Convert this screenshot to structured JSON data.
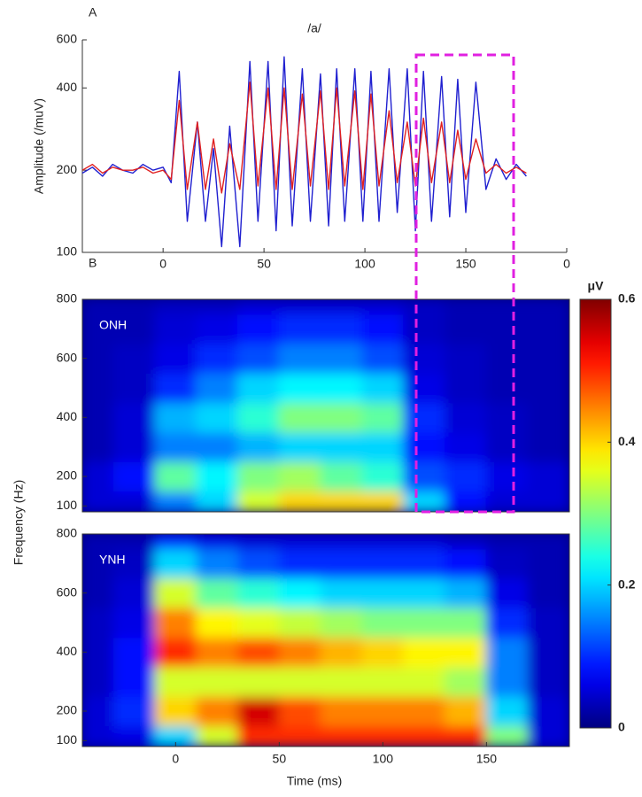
{
  "chart_data": [
    {
      "type": "line",
      "panel_label": "A",
      "title": "/a/",
      "ylabel": "Amplitude (/muV)",
      "yscale": "log",
      "ylim": [
        100,
        600
      ],
      "yticks": [
        100,
        200,
        400,
        600
      ],
      "xlim": [
        -40,
        200
      ],
      "xticks": [
        0,
        50,
        100,
        150,
        {
          "value": 200,
          "label": "0"
        }
      ],
      "x": [
        -40,
        -35,
        -30,
        -25,
        -20,
        -15,
        -10,
        -5,
        0,
        4,
        8,
        12,
        17,
        21,
        25,
        29,
        33,
        38,
        43,
        47,
        52,
        56,
        60,
        64,
        69,
        73,
        78,
        82,
        86,
        90,
        95,
        99,
        103,
        107,
        112,
        116,
        121,
        125,
        129,
        133,
        138,
        142,
        146,
        150,
        155,
        160,
        165,
        170,
        175,
        180
      ],
      "series": [
        {
          "color": "#2020d0",
          "values": [
            195,
            205,
            190,
            210,
            200,
            195,
            210,
            200,
            205,
            180,
            460,
            130,
            300,
            130,
            240,
            105,
            290,
            105,
            500,
            130,
            500,
            120,
            520,
            125,
            470,
            130,
            450,
            125,
            470,
            130,
            470,
            130,
            460,
            130,
            470,
            140,
            470,
            120,
            460,
            130,
            440,
            135,
            430,
            140,
            420,
            170,
            220,
            185,
            210,
            190
          ]
        },
        {
          "color": "#e02020",
          "values": [
            200,
            210,
            195,
            205,
            200,
            200,
            205,
            195,
            200,
            185,
            360,
            170,
            300,
            170,
            260,
            165,
            250,
            170,
            420,
            175,
            400,
            170,
            400,
            170,
            380,
            175,
            390,
            170,
            400,
            175,
            390,
            170,
            380,
            175,
            330,
            180,
            300,
            175,
            310,
            180,
            300,
            180,
            280,
            185,
            260,
            195,
            210,
            195,
            205,
            195
          ]
        }
      ]
    },
    {
      "type": "heatmap",
      "panel_label": "B",
      "title": "ONH",
      "ylabel": "Frequency (Hz)",
      "xlim": [
        -45,
        190
      ],
      "ylim": [
        80,
        800
      ],
      "yticks": [
        100,
        200,
        400,
        600,
        800
      ],
      "x": [
        -40,
        -20,
        0,
        20,
        40,
        60,
        80,
        100,
        120,
        140,
        160,
        180
      ],
      "y": [
        100,
        200,
        300,
        400,
        500,
        600,
        700,
        800
      ],
      "z": [
        [
          0.05,
          0.05,
          0.15,
          0.2,
          0.35,
          0.4,
          0.4,
          0.4,
          0.2,
          0.08,
          0.05,
          0.05
        ],
        [
          0.05,
          0.08,
          0.28,
          0.22,
          0.3,
          0.32,
          0.28,
          0.25,
          0.12,
          0.1,
          0.06,
          0.05
        ],
        [
          0.03,
          0.05,
          0.15,
          0.15,
          0.18,
          0.2,
          0.2,
          0.2,
          0.08,
          0.06,
          0.04,
          0.03
        ],
        [
          0.03,
          0.05,
          0.18,
          0.2,
          0.25,
          0.3,
          0.3,
          0.28,
          0.1,
          0.05,
          0.04,
          0.03
        ],
        [
          0.03,
          0.04,
          0.1,
          0.15,
          0.2,
          0.22,
          0.22,
          0.2,
          0.06,
          0.04,
          0.03,
          0.03
        ],
        [
          0.03,
          0.04,
          0.06,
          0.1,
          0.12,
          0.15,
          0.15,
          0.12,
          0.05,
          0.04,
          0.03,
          0.03
        ],
        [
          0.03,
          0.03,
          0.05,
          0.06,
          0.08,
          0.1,
          0.1,
          0.08,
          0.04,
          0.03,
          0.03,
          0.03
        ],
        [
          0.03,
          0.03,
          0.04,
          0.04,
          0.05,
          0.05,
          0.05,
          0.05,
          0.04,
          0.03,
          0.03,
          0.03
        ]
      ]
    },
    {
      "type": "heatmap",
      "title": "YNH",
      "xlabel": "Time (ms)",
      "xlim": [
        -45,
        190
      ],
      "xticks": [
        0,
        50,
        100,
        150
      ],
      "ylim": [
        80,
        800
      ],
      "yticks": [
        100,
        200,
        400,
        600,
        800
      ],
      "x": [
        -40,
        -20,
        0,
        20,
        40,
        60,
        80,
        100,
        120,
        140,
        160,
        180
      ],
      "y": [
        100,
        200,
        300,
        400,
        500,
        600,
        700,
        800
      ],
      "z": [
        [
          0.05,
          0.06,
          0.2,
          0.35,
          0.5,
          0.5,
          0.5,
          0.5,
          0.5,
          0.5,
          0.3,
          0.05
        ],
        [
          0.05,
          0.1,
          0.4,
          0.45,
          0.55,
          0.48,
          0.45,
          0.45,
          0.45,
          0.42,
          0.2,
          0.05
        ],
        [
          0.04,
          0.08,
          0.35,
          0.35,
          0.35,
          0.35,
          0.35,
          0.35,
          0.35,
          0.32,
          0.15,
          0.04
        ],
        [
          0.04,
          0.08,
          0.5,
          0.45,
          0.48,
          0.45,
          0.42,
          0.4,
          0.38,
          0.38,
          0.15,
          0.04
        ],
        [
          0.04,
          0.06,
          0.45,
          0.38,
          0.36,
          0.34,
          0.32,
          0.3,
          0.3,
          0.3,
          0.1,
          0.04
        ],
        [
          0.03,
          0.05,
          0.35,
          0.28,
          0.25,
          0.22,
          0.2,
          0.2,
          0.2,
          0.18,
          0.06,
          0.03
        ],
        [
          0.03,
          0.04,
          0.2,
          0.15,
          0.12,
          0.1,
          0.1,
          0.1,
          0.1,
          0.08,
          0.04,
          0.03
        ],
        [
          0.03,
          0.03,
          0.1,
          0.06,
          0.05,
          0.05,
          0.05,
          0.05,
          0.05,
          0.04,
          0.03,
          0.03
        ]
      ]
    },
    {
      "type": "colorbar",
      "label": "μV",
      "colormap": "jet",
      "lim": [
        0,
        0.6
      ],
      "ticks": [
        0,
        0.2,
        0.4,
        0.6
      ]
    }
  ]
}
